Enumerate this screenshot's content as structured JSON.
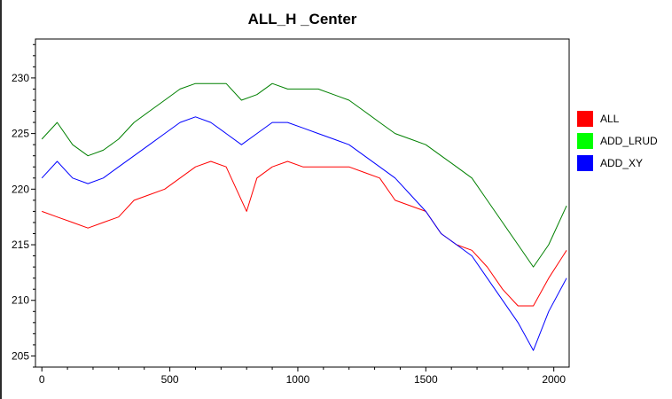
{
  "chart_data": {
    "type": "line",
    "title": "ALL_H _Center",
    "xlabel": "",
    "ylabel": "",
    "xlim": [
      -25,
      2060
    ],
    "ylim": [
      204,
      233.5
    ],
    "x_ticks": [
      0,
      500,
      1000,
      1500,
      2000
    ],
    "y_ticks": [
      205,
      210,
      215,
      220,
      225,
      230
    ],
    "grid": false,
    "legend_position": "right",
    "series": [
      {
        "name": "ALL",
        "color": "#ff0000",
        "x": [
          0,
          60,
          120,
          180,
          240,
          300,
          360,
          420,
          480,
          540,
          600,
          660,
          720,
          780,
          800,
          840,
          900,
          960,
          1020,
          1080,
          1140,
          1200,
          1260,
          1320,
          1380,
          1440,
          1500,
          1560,
          1620,
          1680,
          1740,
          1800,
          1860,
          1920,
          1980,
          2050
        ],
        "y": [
          218,
          217.5,
          217,
          216.5,
          217,
          217.5,
          219,
          219.5,
          220,
          221,
          222,
          222.5,
          222,
          219,
          218,
          221,
          222,
          222.5,
          222,
          222,
          222,
          222,
          221.5,
          221,
          219,
          218.5,
          218,
          216,
          215,
          214.5,
          213,
          211,
          209.5,
          209.5,
          212,
          214.5
        ]
      },
      {
        "name": "ADD_LRUD",
        "color": "#008000",
        "x": [
          0,
          60,
          120,
          180,
          240,
          300,
          360,
          420,
          480,
          540,
          600,
          660,
          720,
          780,
          840,
          900,
          960,
          1020,
          1080,
          1140,
          1200,
          1260,
          1320,
          1380,
          1440,
          1500,
          1560,
          1620,
          1680,
          1740,
          1800,
          1860,
          1920,
          1980,
          2050
        ],
        "y": [
          224.5,
          226,
          224,
          223,
          223.5,
          224.5,
          226,
          227,
          228,
          229,
          229.5,
          229.5,
          229.5,
          228,
          228.5,
          229.5,
          229,
          229,
          229,
          228.5,
          228,
          227,
          226,
          225,
          224.5,
          224,
          223,
          222,
          221,
          219,
          217,
          215,
          213,
          215,
          218.5
        ]
      },
      {
        "name": "ADD_XY",
        "color": "#0000ff",
        "x": [
          0,
          60,
          120,
          180,
          240,
          300,
          360,
          420,
          480,
          540,
          600,
          660,
          720,
          780,
          840,
          900,
          960,
          1020,
          1080,
          1140,
          1200,
          1260,
          1320,
          1380,
          1440,
          1500,
          1560,
          1620,
          1680,
          1740,
          1800,
          1860,
          1920,
          1980,
          2050
        ],
        "y": [
          221,
          222.5,
          221,
          220.5,
          221,
          222,
          223,
          224,
          225,
          226,
          226.5,
          226,
          225,
          224,
          225,
          226,
          226,
          225.5,
          225,
          224.5,
          224,
          223,
          222,
          221,
          219.5,
          218,
          216,
          215,
          214,
          212,
          210,
          208,
          205.5,
          209,
          212
        ]
      }
    ]
  }
}
